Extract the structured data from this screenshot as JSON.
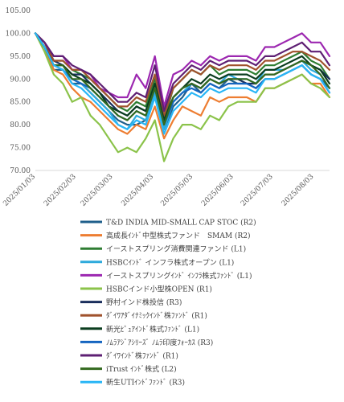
{
  "chart_data": {
    "type": "line",
    "title": "",
    "xlabel": "",
    "ylabel": "",
    "ylim": [
      70,
      105
    ],
    "yticks": [
      "70.00",
      "75.00",
      "80.00",
      "85.00",
      "90.00",
      "95.00",
      "100.00",
      "105.00"
    ],
    "xticks": [
      "2025/01/03",
      "2025/02/03",
      "2025/03/03",
      "2025/04/03",
      "2025/05/03",
      "2025/06/03",
      "2025/07/03",
      "2025/08/03"
    ],
    "x": [
      "2025/01/03",
      "2025/01/10",
      "2025/01/17",
      "2025/01/24",
      "2025/01/31",
      "2025/02/07",
      "2025/02/14",
      "2025/02/21",
      "2025/02/28",
      "2025/03/07",
      "2025/03/14",
      "2025/03/21",
      "2025/03/28",
      "2025/04/04",
      "2025/04/11",
      "2025/04/18",
      "2025/04/25",
      "2025/05/02",
      "2025/05/09",
      "2025/05/16",
      "2025/05/23",
      "2025/05/30",
      "2025/06/06",
      "2025/06/13",
      "2025/06/20",
      "2025/06/27",
      "2025/07/04",
      "2025/07/11",
      "2025/07/18",
      "2025/07/25",
      "2025/08/01",
      "2025/08/08",
      "2025/08/15"
    ],
    "grid": false,
    "legend_position": "bottom",
    "series": [
      {
        "name": "T&D INDIA MID-SMALL CAP STOC (R2)",
        "color": "#1f5f8b",
        "values": [
          100,
          97,
          92,
          92,
          89,
          89,
          87,
          85,
          83,
          81,
          80,
          80,
          81,
          86,
          79,
          84,
          86,
          89,
          87,
          89,
          88,
          90,
          89,
          89,
          88,
          90,
          90,
          91,
          92,
          93,
          91,
          90,
          88
        ]
      },
      {
        "name": "高成長ｲﾝﾄﾞ中型株式ファンド　SMAM (R2)",
        "color": "#ed7d31",
        "values": [
          100,
          97,
          92,
          91,
          88,
          86,
          85,
          83,
          81,
          79,
          78,
          80,
          79,
          84,
          77,
          81,
          84,
          83,
          82,
          86,
          85,
          86,
          86,
          86,
          85,
          88,
          88,
          89,
          90,
          91,
          89,
          89,
          86
        ]
      },
      {
        "name": "イーストスプリング消費関連ファンド (L1)",
        "color": "#2e7d32",
        "values": [
          100,
          98,
          94,
          94,
          92,
          91,
          90,
          88,
          86,
          84,
          83,
          85,
          84,
          90,
          81,
          88,
          90,
          92,
          91,
          93,
          91,
          92,
          92,
          92,
          91,
          93,
          93,
          94,
          95,
          96,
          94,
          93,
          90
        ]
      },
      {
        "name": "HSBCｲﾝﾄﾞ インフラ株式オープン (L1)",
        "color": "#2eaadc",
        "values": [
          100,
          97,
          93,
          93,
          90,
          89,
          87,
          85,
          83,
          80,
          79,
          82,
          81,
          87,
          79,
          85,
          87,
          89,
          88,
          90,
          89,
          91,
          90,
          90,
          89,
          92,
          92,
          92,
          93,
          94,
          92,
          91,
          88
        ]
      },
      {
        "name": "イーストスプリングｲﾝﾄﾞ ｲﾝﾌﾗ株式ﾌｧﾝﾄﾞ (L1)",
        "color": "#9c27b0",
        "values": [
          100,
          98,
          95,
          95,
          92,
          92,
          91,
          88,
          87,
          86,
          86,
          91,
          88,
          95,
          84,
          91,
          92,
          94,
          93,
          95,
          94,
          95,
          95,
          95,
          94,
          97,
          97,
          98,
          99,
          100,
          98,
          98,
          95
        ]
      },
      {
        "name": "HSBCインド小型株OPEN (R1)",
        "color": "#8bc34a",
        "values": [
          100,
          96,
          91,
          89,
          85,
          86,
          82,
          80,
          77,
          74,
          75,
          74,
          77,
          81,
          72,
          77,
          80,
          80,
          79,
          82,
          81,
          84,
          85,
          85,
          85,
          88,
          88,
          89,
          90,
          91,
          89,
          88,
          86
        ]
      },
      {
        "name": "野村インド株投信 (R3)",
        "color": "#1a2e5c",
        "values": [
          100,
          97,
          94,
          93,
          91,
          91,
          89,
          87,
          85,
          83,
          82,
          84,
          83,
          88,
          81,
          86,
          88,
          89,
          88,
          90,
          89,
          90,
          90,
          89,
          89,
          91,
          91,
          92,
          93,
          94,
          93,
          92,
          90
        ]
      },
      {
        "name": "ﾀﾞｲﾜｱﾀﾞｲﾅﾐｯｸｲﾝﾄﾞ株ﾌｧﾝﾄﾞ (R1)",
        "color": "#a0522d",
        "values": [
          100,
          98,
          94,
          94,
          92,
          92,
          90,
          88,
          86,
          84,
          84,
          86,
          85,
          91,
          82,
          88,
          90,
          92,
          91,
          93,
          92,
          93,
          93,
          93,
          92,
          94,
          94,
          95,
          96,
          96,
          95,
          94,
          92
        ]
      },
      {
        "name": "新光ﾋﾟｭｱｲﾝﾄﾞ株式ﾌｧﾝﾄﾞ (L1)",
        "color": "#0b3d1f",
        "values": [
          100,
          97,
          93,
          93,
          91,
          90,
          89,
          87,
          84,
          83,
          82,
          84,
          83,
          89,
          81,
          86,
          88,
          90,
          89,
          91,
          90,
          91,
          91,
          91,
          90,
          92,
          92,
          93,
          94,
          95,
          93,
          92,
          89
        ]
      },
      {
        "name": "ﾉﾑﾗｱｼﾞｱｼﾘｰｽﾞ ﾉﾑﾗ印度ﾌｫｰｶｽ (R3)",
        "color": "#1565c0",
        "values": [
          100,
          97,
          93,
          92,
          90,
          89,
          88,
          86,
          84,
          82,
          81,
          83,
          82,
          88,
          80,
          85,
          87,
          88,
          87,
          89,
          88,
          89,
          89,
          89,
          88,
          90,
          90,
          91,
          92,
          93,
          91,
          90,
          87
        ]
      },
      {
        "name": "ﾀﾞｲﾜｲﾝﾄﾞ株ﾌｧﾝﾄﾞ (R1)",
        "color": "#5e1f73",
        "values": [
          100,
          98,
          95,
          95,
          93,
          92,
          91,
          89,
          87,
          85,
          85,
          87,
          86,
          93,
          83,
          89,
          91,
          93,
          92,
          94,
          93,
          94,
          94,
          94,
          93,
          95,
          95,
          96,
          97,
          98,
          96,
          96,
          93
        ]
      },
      {
        "name": "iTrust ｲﾝﾄﾞ株式 (L2)",
        "color": "#33691e",
        "values": [
          100,
          97,
          93,
          93,
          90,
          90,
          88,
          86,
          84,
          82,
          81,
          83,
          82,
          88,
          80,
          86,
          88,
          89,
          88,
          90,
          89,
          90,
          90,
          90,
          89,
          91,
          91,
          92,
          93,
          94,
          93,
          91,
          88
        ]
      },
      {
        "name": "新生UTIｲﾝﾄﾞﾌｧﾝﾄﾞ (R3)",
        "color": "#29b6f6",
        "values": [
          100,
          97,
          93,
          92,
          89,
          88,
          86,
          84,
          82,
          80,
          79,
          81,
          80,
          86,
          78,
          83,
          85,
          87,
          86,
          88,
          87,
          88,
          88,
          88,
          87,
          90,
          90,
          91,
          92,
          93,
          91,
          90,
          87
        ]
      }
    ]
  }
}
